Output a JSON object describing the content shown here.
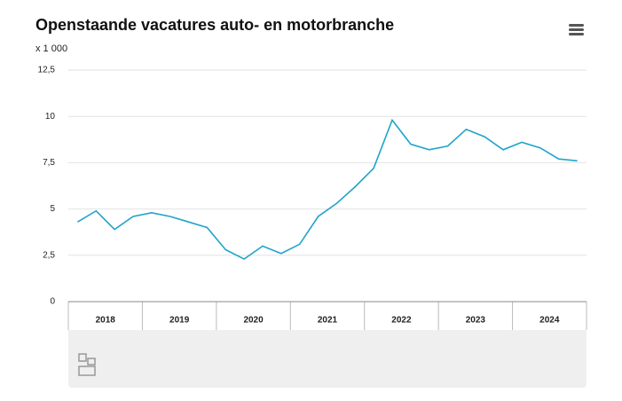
{
  "chart_data": {
    "type": "line",
    "title": "Openstaande vacatures auto- en motorbranche",
    "unit_label": "x 1 000",
    "years": [
      "2018",
      "2019",
      "2020",
      "2021",
      "2022",
      "2023",
      "2024"
    ],
    "series": [
      {
        "color": "#1fa4c9",
        "values": [
          4.3,
          4.9,
          3.9,
          4.6,
          4.8,
          4.6,
          4.3,
          4.0,
          2.8,
          2.3,
          3.0,
          2.6,
          3.1,
          4.6,
          5.3,
          6.2,
          7.2,
          9.8,
          8.5,
          8.2,
          8.4,
          9.3,
          8.9,
          8.2,
          8.6,
          8.3,
          7.7,
          7.6
        ]
      }
    ],
    "ylim": [
      0,
      12.5
    ],
    "yticks": [
      0,
      {
        "value": 2.5,
        "label": "2,5"
      },
      5,
      {
        "value": 7.5,
        "label": "7,5"
      },
      10,
      {
        "value": 12.5,
        "label": "12,5"
      }
    ],
    "grid": true
  }
}
